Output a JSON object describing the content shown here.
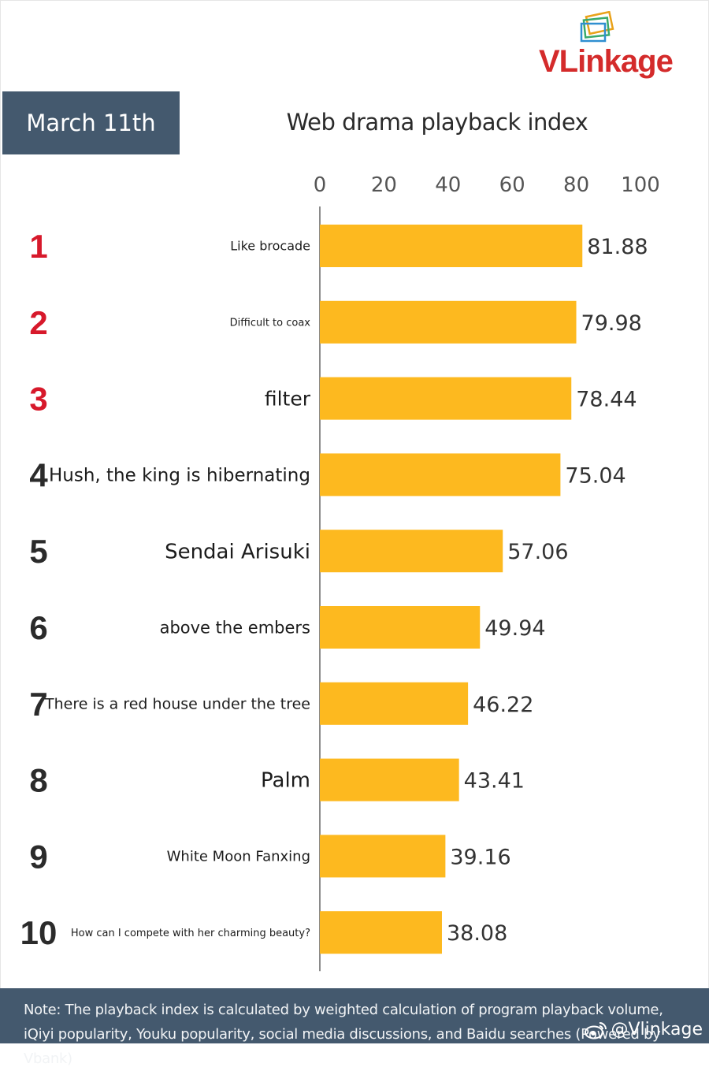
{
  "brand": {
    "logo_prefix": "VLink",
    "logo_suffix": "age"
  },
  "date_label": "March 11th",
  "footer": {
    "note": "Note: The playback index is calculated by weighted calculation of program playback volume, iQiyi popularity, Youku popularity, social media discussions, and Baidu searches (Powered by Vbank)",
    "handle": "@Vlinkage",
    "icon": "weibo-icon"
  },
  "colors": {
    "bar": "#fdb91f",
    "rank_top3": "#d7192b",
    "rank_other": "#2b2b2b",
    "header_bg": "#44596e"
  },
  "chart_data": {
    "type": "bar",
    "orientation": "horizontal",
    "title": "Web drama playback index",
    "xlim": [
      0,
      100
    ],
    "ticks": [
      0,
      20,
      40,
      60,
      80,
      100
    ],
    "grid": false,
    "ranks": [
      "1",
      "2",
      "3",
      "4",
      "5",
      "6",
      "7",
      "8",
      "9",
      "10"
    ],
    "categories": [
      "Like brocade",
      "Difficult to coax",
      "filter",
      "Hush, the king is hibernating",
      "Sendai Arisuki",
      "above the embers",
      "There is a red house under the tree",
      "Palm",
      "White Moon Fanxing",
      "How can I compete with her charming beauty?"
    ],
    "values": [
      81.88,
      79.98,
      78.44,
      75.04,
      57.06,
      49.94,
      46.22,
      43.41,
      39.16,
      38.08
    ]
  }
}
